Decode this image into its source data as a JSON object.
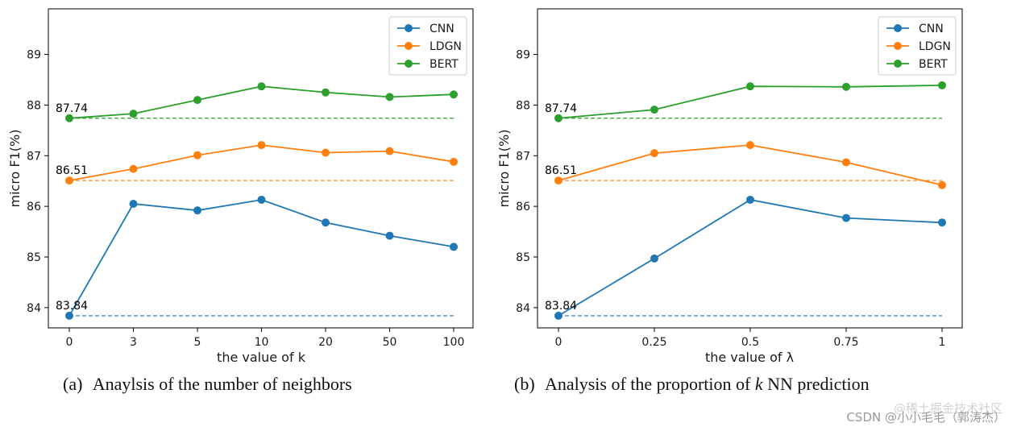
{
  "chart_data": [
    {
      "type": "line",
      "caption_prefix": "(a)",
      "caption": "Anaylsis of the number of neighbors",
      "xlabel": "the value of k",
      "ylabel": "micro F1(%)",
      "categories": [
        "0",
        "3",
        "5",
        "10",
        "20",
        "50",
        "100"
      ],
      "ylim": [
        83.6,
        89.9
      ],
      "yticks": [
        84,
        85,
        86,
        87,
        88,
        89
      ],
      "series": [
        {
          "name": "CNN",
          "color": "#1f77b4",
          "values": [
            83.84,
            86.05,
            85.92,
            86.13,
            85.68,
            85.42,
            85.2
          ],
          "baseline": 83.84,
          "baseline_label": "83.84"
        },
        {
          "name": "LDGN",
          "color": "#ff7f0e",
          "values": [
            86.51,
            86.74,
            87.01,
            87.21,
            87.06,
            87.09,
            86.88
          ],
          "baseline": 86.51,
          "baseline_label": "86.51"
        },
        {
          "name": "BERT",
          "color": "#2ca02c",
          "values": [
            87.74,
            87.83,
            88.1,
            88.37,
            88.25,
            88.16,
            88.21
          ],
          "baseline": 87.74,
          "baseline_label": "87.74"
        }
      ]
    },
    {
      "type": "line",
      "caption_prefix": "(b)",
      "caption_parts": [
        "Analysis of the proportion of ",
        "k",
        "NN prediction"
      ],
      "xlabel": "the value of λ",
      "ylabel": "micro F1(%)",
      "categories": [
        "0",
        "0.25",
        "0.5",
        "0.75",
        "1"
      ],
      "ylim": [
        83.6,
        89.9
      ],
      "yticks": [
        84,
        85,
        86,
        87,
        88,
        89
      ],
      "series": [
        {
          "name": "CNN",
          "color": "#1f77b4",
          "values": [
            83.84,
            84.97,
            86.13,
            85.77,
            85.68
          ],
          "baseline": 83.84,
          "baseline_label": "83.84"
        },
        {
          "name": "LDGN",
          "color": "#ff7f0e",
          "values": [
            86.51,
            87.05,
            87.21,
            86.87,
            86.42
          ],
          "baseline": 86.51,
          "baseline_label": "86.51"
        },
        {
          "name": "BERT",
          "color": "#2ca02c",
          "values": [
            87.74,
            87.91,
            88.37,
            88.36,
            88.39
          ],
          "baseline": 87.74,
          "baseline_label": "87.74"
        }
      ]
    }
  ],
  "watermark": "CSDN @小小毛毛（郭涛杰）",
  "watermark_faint": "@稀土掘金技术社区"
}
